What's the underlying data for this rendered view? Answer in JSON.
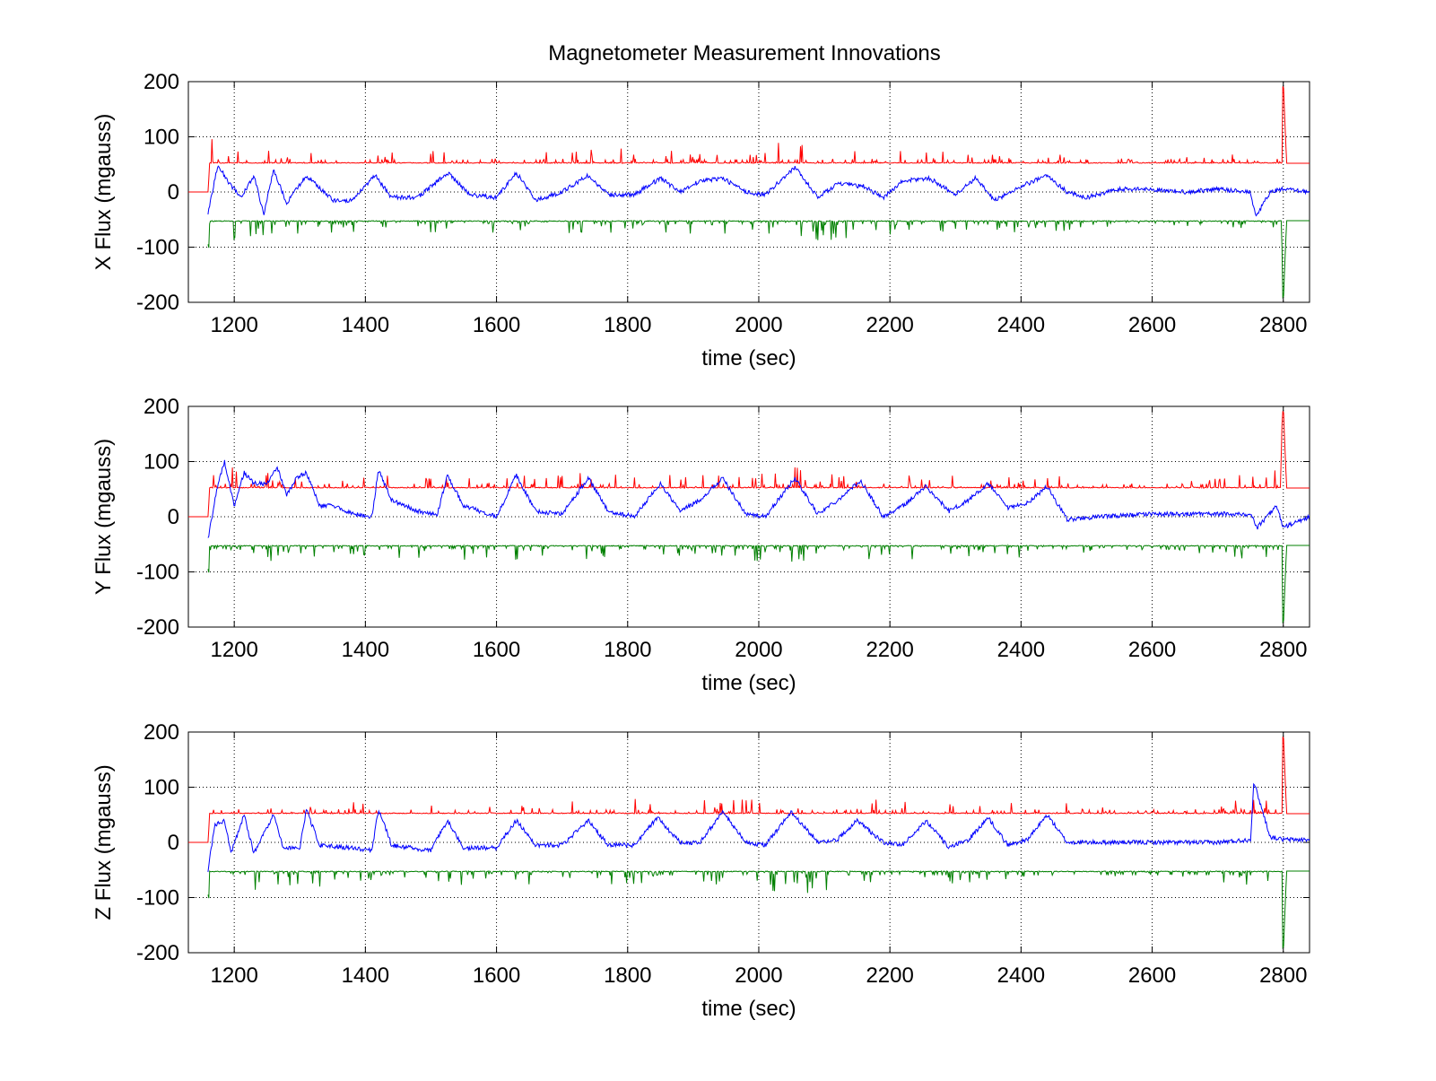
{
  "figure": {
    "title": "Magnetometer Measurement Innovations"
  },
  "colors": {
    "upper_bound": "#ff0000",
    "innovation": "#0000ff",
    "lower_bound": "#008000",
    "grid": "#000000"
  },
  "chart_data": [
    {
      "type": "line",
      "title": "Magnetometer Measurement Innovations",
      "xlabel": "time (sec)",
      "ylabel": "X Flux (mgauss)",
      "xlim": [
        1130,
        2840
      ],
      "ylim": [
        -200,
        200
      ],
      "xticks": [
        1200,
        1400,
        1600,
        1800,
        2000,
        2200,
        2400,
        2600,
        2800
      ],
      "yticks": [
        200,
        100,
        0,
        -100,
        -200
      ],
      "grid": true,
      "legend": "none",
      "series": [
        {
          "role": "upper",
          "color": "#ff0000",
          "baseline": 52,
          "x": [
            1130,
            1160,
            1165,
            1170,
            1180,
            1200,
            1260,
            1420,
            1520,
            1630,
            1740,
            1850,
            1950,
            2055,
            2160,
            2260,
            2350,
            2440,
            2600,
            2750,
            2790,
            2800,
            2805,
            2840
          ],
          "y": [
            0,
            0,
            100,
            128,
            95,
            90,
            80,
            75,
            80,
            78,
            80,
            78,
            76,
            95,
            80,
            76,
            72,
            76,
            55,
            80,
            90,
            200,
            52,
            52
          ]
        },
        {
          "role": "innovation",
          "color": "#0000ff",
          "x": [
            1160,
            1175,
            1190,
            1210,
            1230,
            1245,
            1260,
            1280,
            1310,
            1350,
            1380,
            1415,
            1440,
            1480,
            1525,
            1560,
            1600,
            1630,
            1660,
            1700,
            1740,
            1770,
            1810,
            1850,
            1880,
            1910,
            1945,
            1980,
            2010,
            2055,
            2090,
            2120,
            2160,
            2190,
            2220,
            2260,
            2300,
            2330,
            2360,
            2400,
            2440,
            2470,
            2500,
            2550,
            2600,
            2650,
            2700,
            2750,
            2758,
            2780,
            2800,
            2840
          ],
          "y": [
            -40,
            50,
            20,
            -10,
            30,
            -40,
            40,
            -20,
            30,
            -15,
            -15,
            30,
            -10,
            -10,
            35,
            -5,
            -10,
            35,
            -15,
            0,
            30,
            -5,
            -5,
            25,
            0,
            20,
            25,
            0,
            -5,
            45,
            -10,
            15,
            10,
            -10,
            20,
            25,
            -5,
            25,
            -15,
            10,
            30,
            0,
            -10,
            5,
            5,
            0,
            5,
            0,
            -45,
            0,
            5,
            0
          ]
        },
        {
          "role": "lower",
          "color": "#008000",
          "baseline": -52,
          "x": [
            1160,
            1165,
            1170,
            1180,
            1200,
            1260,
            1350,
            1420,
            1520,
            1630,
            1740,
            1850,
            1950,
            2060,
            2160,
            2260,
            2350,
            2440,
            2600,
            2750,
            2790,
            2800,
            2805,
            2840
          ],
          "y": [
            -95,
            -120,
            -130,
            -100,
            -100,
            -80,
            -85,
            -75,
            -80,
            -78,
            -80,
            -78,
            -76,
            -95,
            -80,
            -76,
            -72,
            -76,
            -55,
            -80,
            -85,
            -200,
            -52,
            -52
          ]
        }
      ]
    },
    {
      "type": "line",
      "xlabel": "time (sec)",
      "ylabel": "Y Flux (mgauss)",
      "xlim": [
        1130,
        2840
      ],
      "ylim": [
        -200,
        200
      ],
      "xticks": [
        1200,
        1400,
        1600,
        1800,
        2000,
        2200,
        2400,
        2600,
        2800
      ],
      "yticks": [
        200,
        100,
        0,
        -100,
        -200
      ],
      "grid": true,
      "legend": "none",
      "series": [
        {
          "role": "upper",
          "color": "#ff0000",
          "baseline": 52,
          "x": [
            1130,
            1160,
            1165,
            1170,
            1180,
            1200,
            1260,
            1420,
            1520,
            1630,
            1740,
            1850,
            1950,
            2055,
            2160,
            2260,
            2350,
            2440,
            2600,
            2750,
            2790,
            2800,
            2805,
            2840
          ],
          "y": [
            0,
            0,
            100,
            128,
            95,
            90,
            80,
            75,
            80,
            78,
            80,
            78,
            76,
            95,
            80,
            76,
            72,
            76,
            55,
            80,
            90,
            200,
            52,
            52
          ]
        },
        {
          "role": "innovation",
          "color": "#0000ff",
          "x": [
            1160,
            1175,
            1185,
            1200,
            1215,
            1230,
            1250,
            1265,
            1280,
            1295,
            1310,
            1330,
            1350,
            1380,
            1410,
            1420,
            1440,
            1480,
            1510,
            1525,
            1550,
            1600,
            1630,
            1660,
            1700,
            1740,
            1770,
            1810,
            1850,
            1880,
            1910,
            1945,
            1980,
            2010,
            2055,
            2090,
            2120,
            2155,
            2190,
            2220,
            2255,
            2290,
            2320,
            2350,
            2380,
            2410,
            2440,
            2470,
            2520,
            2600,
            2700,
            2750,
            2760,
            2790,
            2800,
            2840
          ],
          "y": [
            -40,
            60,
            100,
            20,
            80,
            60,
            60,
            90,
            40,
            70,
            80,
            20,
            20,
            5,
            0,
            85,
            30,
            10,
            5,
            75,
            20,
            0,
            75,
            10,
            5,
            70,
            10,
            0,
            60,
            10,
            30,
            70,
            5,
            0,
            70,
            5,
            30,
            65,
            0,
            20,
            55,
            10,
            30,
            60,
            15,
            25,
            55,
            -5,
            0,
            5,
            5,
            5,
            -20,
            20,
            -20,
            0
          ]
        },
        {
          "role": "lower",
          "color": "#008000",
          "baseline": -52,
          "x": [
            1160,
            1165,
            1170,
            1180,
            1200,
            1260,
            1350,
            1420,
            1520,
            1630,
            1740,
            1850,
            1950,
            2060,
            2160,
            2260,
            2350,
            2440,
            2600,
            2750,
            2790,
            2800,
            2805,
            2840
          ],
          "y": [
            -95,
            -120,
            -130,
            -100,
            -100,
            -80,
            -85,
            -75,
            -80,
            -78,
            -80,
            -78,
            -76,
            -95,
            -80,
            -76,
            -72,
            -76,
            -55,
            -80,
            -85,
            -200,
            -52,
            -52
          ]
        }
      ]
    },
    {
      "type": "line",
      "xlabel": "time (sec)",
      "ylabel": "Z Flux (mgauss)",
      "xlim": [
        1130,
        2840
      ],
      "ylim": [
        -200,
        200
      ],
      "xticks": [
        1200,
        1400,
        1600,
        1800,
        2000,
        2200,
        2400,
        2600,
        2800
      ],
      "yticks": [
        200,
        100,
        0,
        -100,
        -200
      ],
      "grid": true,
      "legend": "none",
      "series": [
        {
          "role": "upper",
          "color": "#ff0000",
          "baseline": 52,
          "x": [
            1130,
            1160,
            1165,
            1170,
            1180,
            1200,
            1260,
            1420,
            1520,
            1630,
            1740,
            1850,
            1950,
            2055,
            2160,
            2260,
            2350,
            2440,
            2600,
            2750,
            2790,
            2800,
            2805,
            2840
          ],
          "y": [
            0,
            0,
            100,
            128,
            95,
            90,
            80,
            75,
            80,
            78,
            80,
            78,
            76,
            95,
            80,
            76,
            72,
            76,
            55,
            80,
            90,
            200,
            52,
            52
          ]
        },
        {
          "role": "innovation",
          "color": "#0000ff",
          "x": [
            1160,
            1170,
            1185,
            1195,
            1215,
            1230,
            1260,
            1275,
            1300,
            1310,
            1330,
            1380,
            1410,
            1420,
            1440,
            1500,
            1525,
            1550,
            1600,
            1630,
            1660,
            1700,
            1740,
            1770,
            1810,
            1845,
            1880,
            1910,
            1945,
            1980,
            2010,
            2050,
            2090,
            2120,
            2150,
            2190,
            2220,
            2255,
            2290,
            2320,
            2350,
            2380,
            2410,
            2440,
            2470,
            2520,
            2600,
            2700,
            2750,
            2755,
            2780,
            2800,
            2840
          ],
          "y": [
            -50,
            30,
            40,
            -20,
            50,
            -20,
            50,
            -10,
            -10,
            60,
            -5,
            -10,
            -15,
            60,
            -5,
            -15,
            40,
            -10,
            -10,
            40,
            -5,
            -5,
            40,
            -5,
            -5,
            45,
            0,
            0,
            55,
            0,
            -5,
            55,
            0,
            5,
            40,
            0,
            -5,
            40,
            -10,
            5,
            45,
            -5,
            5,
            50,
            0,
            0,
            0,
            0,
            5,
            110,
            10,
            5,
            5
          ]
        },
        {
          "role": "lower",
          "color": "#008000",
          "baseline": -52,
          "x": [
            1160,
            1165,
            1170,
            1180,
            1200,
            1260,
            1350,
            1420,
            1520,
            1630,
            1740,
            1850,
            1950,
            2060,
            2160,
            2260,
            2350,
            2440,
            2600,
            2750,
            2790,
            2800,
            2805,
            2840
          ],
          "y": [
            -95,
            -120,
            -130,
            -100,
            -100,
            -80,
            -85,
            -75,
            -80,
            -78,
            -80,
            -78,
            -76,
            -95,
            -80,
            -76,
            -72,
            -76,
            -55,
            -80,
            -85,
            -200,
            -52,
            -52
          ]
        }
      ]
    }
  ]
}
